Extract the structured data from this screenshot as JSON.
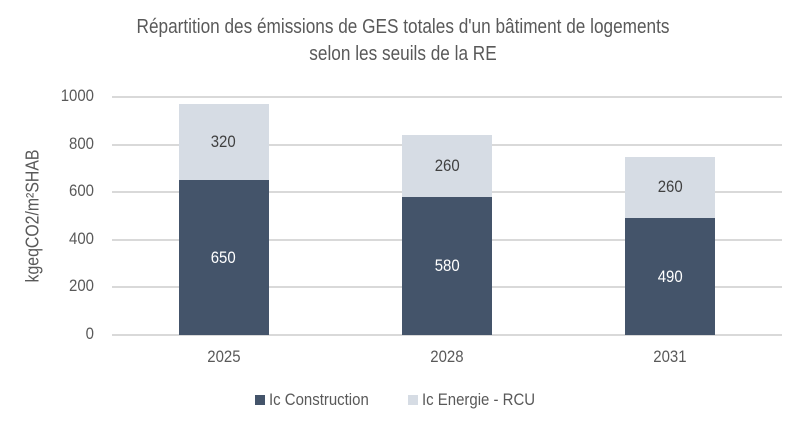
{
  "chart_data": {
    "type": "bar",
    "stacked": true,
    "title": "Répartition des émissions de GES totales d'un bâtiment de logements selon les seuils de la RE",
    "title_lines": [
      "Répartition des émissions de GES totales d'un bâtiment de logements",
      "selon les seuils de la RE"
    ],
    "xlabel": "",
    "ylabel": "kgeqCO2/m²SHAB",
    "categories": [
      "2025",
      "2028",
      "2031"
    ],
    "series": [
      {
        "name": "Ic Construction",
        "values": [
          650,
          580,
          490
        ],
        "color": "#44546a"
      },
      {
        "name": "Ic Energie - RCU",
        "values": [
          320,
          260,
          260
        ],
        "color": "#d6dce4"
      }
    ],
    "ylim": [
      0,
      1000
    ],
    "yticks": [
      "0",
      "200",
      "400",
      "600",
      "800",
      "1000"
    ],
    "grid": true,
    "legend_position": "bottom"
  }
}
